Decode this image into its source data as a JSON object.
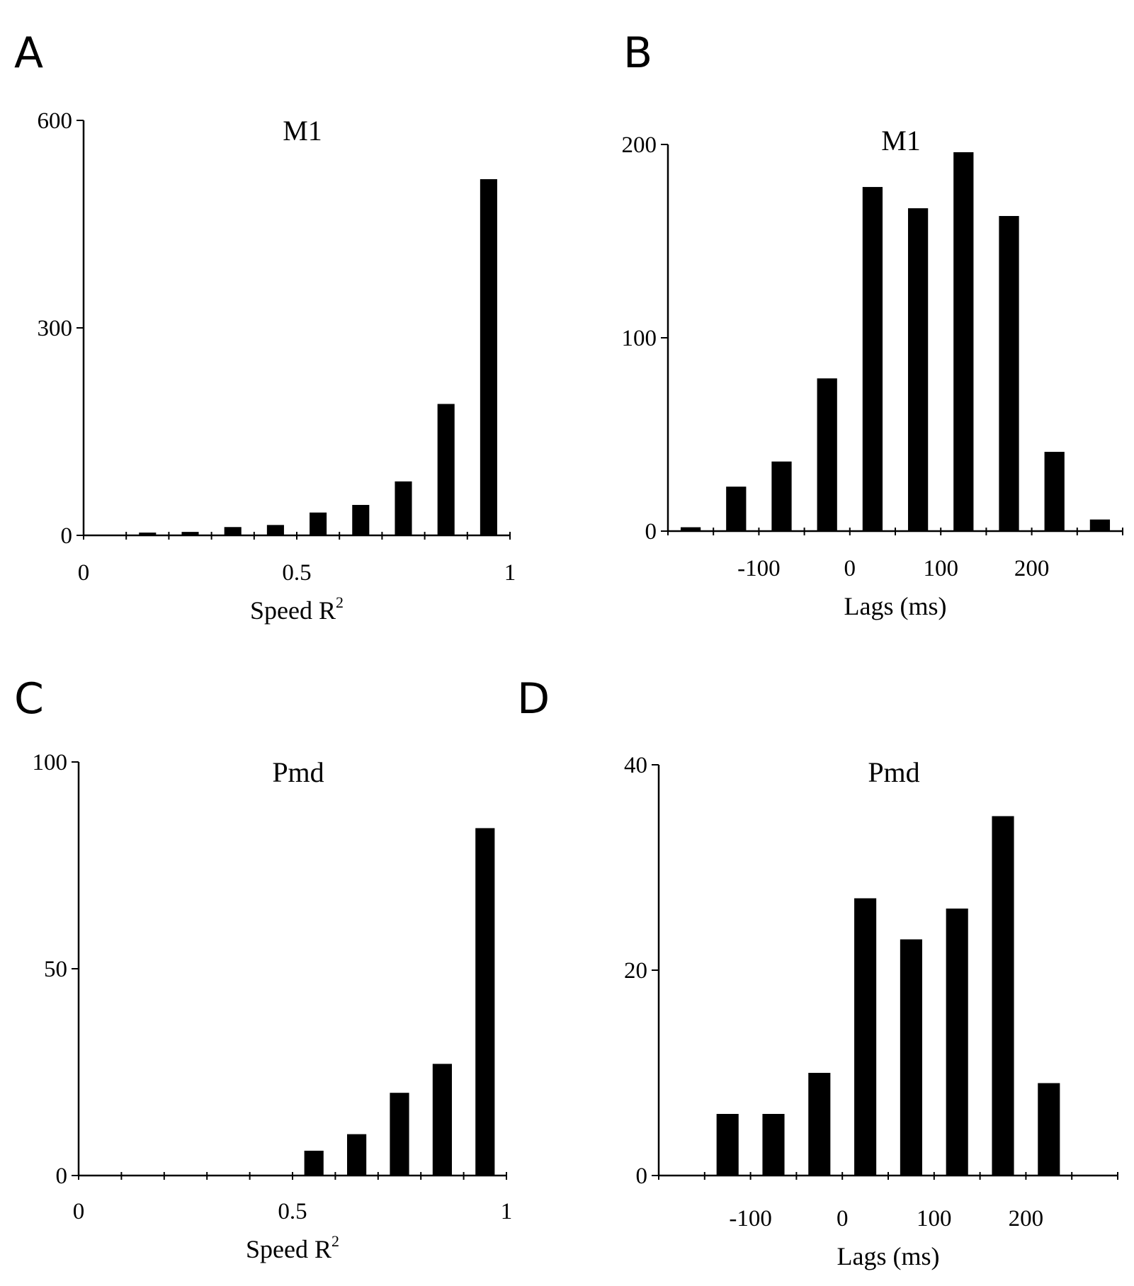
{
  "chart_data": [
    {
      "panel": "A",
      "type": "bar",
      "title": "M1",
      "xlabel": "Speed R",
      "xlabel_sup": "2",
      "ylabel": "",
      "xlim": [
        0,
        1
      ],
      "ylim": [
        0,
        600
      ],
      "xticks": [
        0,
        0.5,
        1
      ],
      "xtick_labels": [
        "0",
        "0.5",
        "1"
      ],
      "yticks": [
        0,
        300,
        600
      ],
      "ytick_labels": [
        "0",
        "300",
        "600"
      ],
      "minor_xtick_step": 0.1,
      "bar_width": 0.04,
      "x": [
        0.15,
        0.25,
        0.35,
        0.45,
        0.55,
        0.65,
        0.75,
        0.85,
        0.95
      ],
      "values": [
        4,
        5,
        12,
        15,
        33,
        44,
        78,
        190,
        515
      ]
    },
    {
      "panel": "B",
      "type": "bar",
      "title": "M1",
      "xlabel": "Lags (ms)",
      "xlabel_sup": "",
      "ylabel": "",
      "xlim": [
        -200,
        300
      ],
      "ylim": [
        0,
        200
      ],
      "xticks": [
        -100,
        0,
        100,
        200
      ],
      "xtick_labels": [
        "-100",
        "0",
        "100",
        "200"
      ],
      "yticks": [
        0,
        100,
        200
      ],
      "ytick_labels": [
        "0",
        "100",
        "200"
      ],
      "minor_xtick_step": 50,
      "bar_width": 22,
      "x": [
        -175,
        -125,
        -75,
        -25,
        25,
        75,
        125,
        175,
        225,
        275
      ],
      "values": [
        2,
        23,
        36,
        79,
        178,
        167,
        196,
        163,
        41,
        6
      ]
    },
    {
      "panel": "C",
      "type": "bar",
      "title": "Pmd",
      "xlabel": "Speed R",
      "xlabel_sup": "2",
      "ylabel": "",
      "xlim": [
        0,
        1
      ],
      "ylim": [
        0,
        100
      ],
      "xticks": [
        0,
        0.5,
        1
      ],
      "xtick_labels": [
        "0",
        "0.5",
        "1"
      ],
      "yticks": [
        0,
        50,
        100
      ],
      "ytick_labels": [
        "0",
        "50",
        "100"
      ],
      "minor_xtick_step": 0.1,
      "bar_width": 0.045,
      "x": [
        0.55,
        0.65,
        0.75,
        0.85,
        0.95
      ],
      "values": [
        6,
        10,
        20,
        27,
        84
      ]
    },
    {
      "panel": "D",
      "type": "bar",
      "title": "Pmd",
      "xlabel": "Lags (ms)",
      "xlabel_sup": "",
      "ylabel": "",
      "xlim": [
        -200,
        300
      ],
      "ylim": [
        0,
        40
      ],
      "xticks": [
        -100,
        0,
        100,
        200
      ],
      "xtick_labels": [
        "-100",
        "0",
        "100",
        "200"
      ],
      "yticks": [
        0,
        20,
        40
      ],
      "ytick_labels": [
        "0",
        "20",
        "40"
      ],
      "minor_xtick_step": 50,
      "bar_width": 24,
      "x": [
        -125,
        -75,
        -25,
        25,
        75,
        125,
        175,
        225
      ],
      "values": [
        6,
        6,
        10,
        27,
        23,
        26,
        35,
        9
      ]
    }
  ],
  "colors": {
    "bar": "#000000",
    "axis": "#000000",
    "background": "#ffffff"
  }
}
